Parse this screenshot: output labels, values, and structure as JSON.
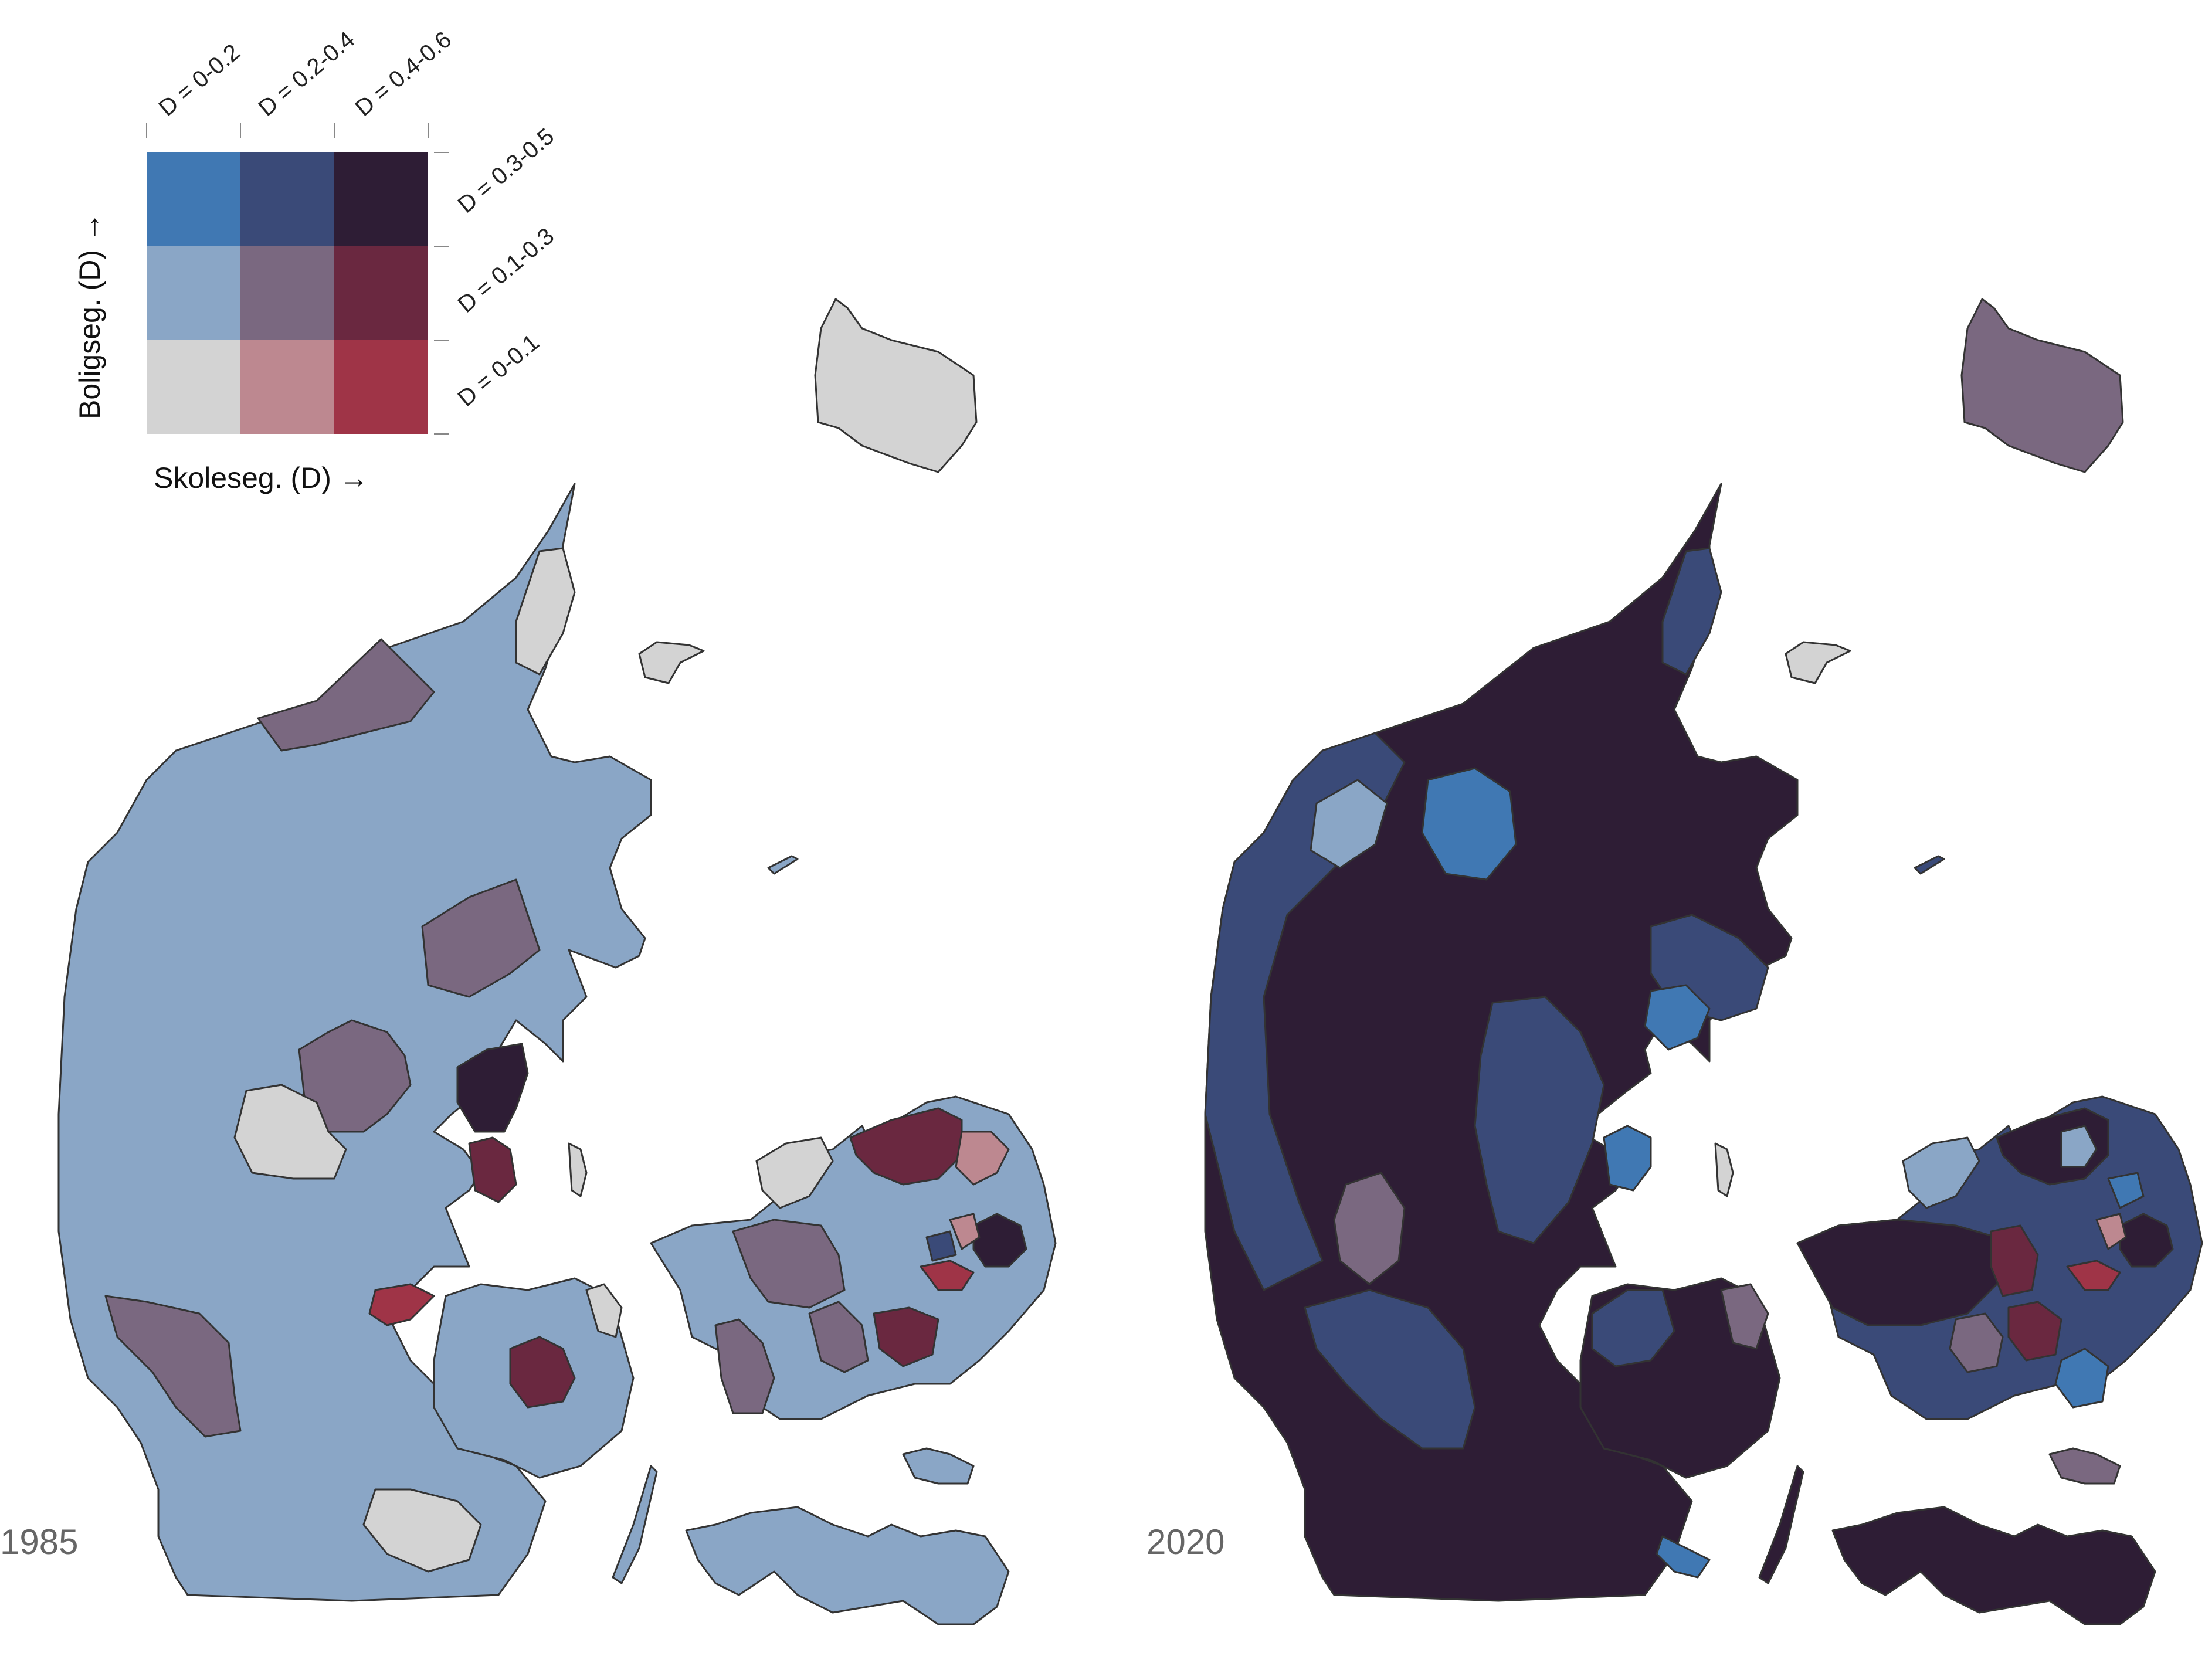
{
  "legend": {
    "x_title": "Skoleseg. (D) →",
    "y_title": "Boligseg. (D) →",
    "x_ticks": [
      "D = 0-0.2",
      "D = 0.2-0.4",
      "D = 0.4-0.6"
    ],
    "y_ticks": [
      "D = 0-0.1",
      "D = 0.1-0.3",
      "D = 0.3-0.5"
    ],
    "grid_colors": [
      [
        "#d3d3d3",
        "#bd8890",
        "#9f3447"
      ],
      [
        "#8aa6c6",
        "#7a6880",
        "#6a2840"
      ],
      [
        "#4078b3",
        "#3a4a78",
        "#2e1d35"
      ]
    ]
  },
  "maps": [
    {
      "label": "1985",
      "dominant_class": "#8aa6c6",
      "regions": {
        "jutland": "#8aa6c6",
        "funen": "#8aa6c6",
        "zealand": "#8aa6c6",
        "lolland_falster": "#8aa6c6",
        "bornholm": "#d3d3d3",
        "north_tip": "#d3d3d3",
        "laeso": "#d3d3d3",
        "anholt": "#8aa6c6",
        "samso": "#d3d3d3",
        "langeland": "#8aa6c6",
        "moen": "#8aa6c6",
        "northwest_patch": "#7a6880",
        "himmerland_patch": "#7a6880",
        "central_patch": "#7a6880",
        "central_light": "#d3d3d3",
        "aarhus": "#2e1d35",
        "odder": "#6a2840",
        "southwest_patch": "#7a6880",
        "fredericia": "#9f3447",
        "funen_center": "#6a2840",
        "funen_ne": "#d3d3d3",
        "langeland_small": "#d3d3d3",
        "zealand_west_patch": "#7a6880",
        "zealand_center_patch": "#7a6880",
        "zealand_south_patch": "#7a6880",
        "roskilde": "#6a2840",
        "north_zealand_a": "#6a2840",
        "north_zealand_b": "#bd8890",
        "odsherred_tip": "#d3d3d3",
        "copenhagen_core": "#2e1d35",
        "copenhagen_red": "#9f3447",
        "copenhagen_pink": "#bd8890",
        "copenhagen_dark": "#3a4a78"
      }
    },
    {
      "label": "2020",
      "dominant_class": "#2e1d35",
      "regions": {
        "jutland": "#2e1d35",
        "funen": "#2e1d35",
        "zealand": "#3a4a78",
        "lolland_falster": "#2e1d35",
        "bornholm": "#7a6880",
        "north_tip": "#3a4a78",
        "laeso": "#d3d3d3",
        "anholt": "#3a4a78",
        "samso": "#d3d3d3",
        "langeland": "#2e1d35",
        "moen": "#7a6880",
        "west_coast": "#3a4a78",
        "thy_light": "#8aa6c6",
        "mors_blue": "#4078b3",
        "djursland": "#3a4a78",
        "djursland_blue": "#4078b3",
        "aarhus_blue": "#4078b3",
        "central_band": "#3a4a78",
        "herning_patch": "#7a6880",
        "southwest": "#3a4a78",
        "funen_west": "#3a4a78",
        "funen_east_light": "#7a6880",
        "aeroe": "#4078b3",
        "zealand_west": "#2e1d35",
        "odsherred": "#8aa6c6",
        "roskilde_red": "#6a2840",
        "koege_red": "#6a2840",
        "ringsted_light": "#7a6880",
        "stevns_blue": "#4078b3",
        "north_zealand_dark": "#2e1d35",
        "north_zealand_light": "#8aa6c6",
        "copenhagen_core": "#2e1d35",
        "copenhagen_blue": "#4078b3",
        "copenhagen_pink": "#bd8890",
        "copenhagen_red": "#9f3447"
      }
    }
  ]
}
